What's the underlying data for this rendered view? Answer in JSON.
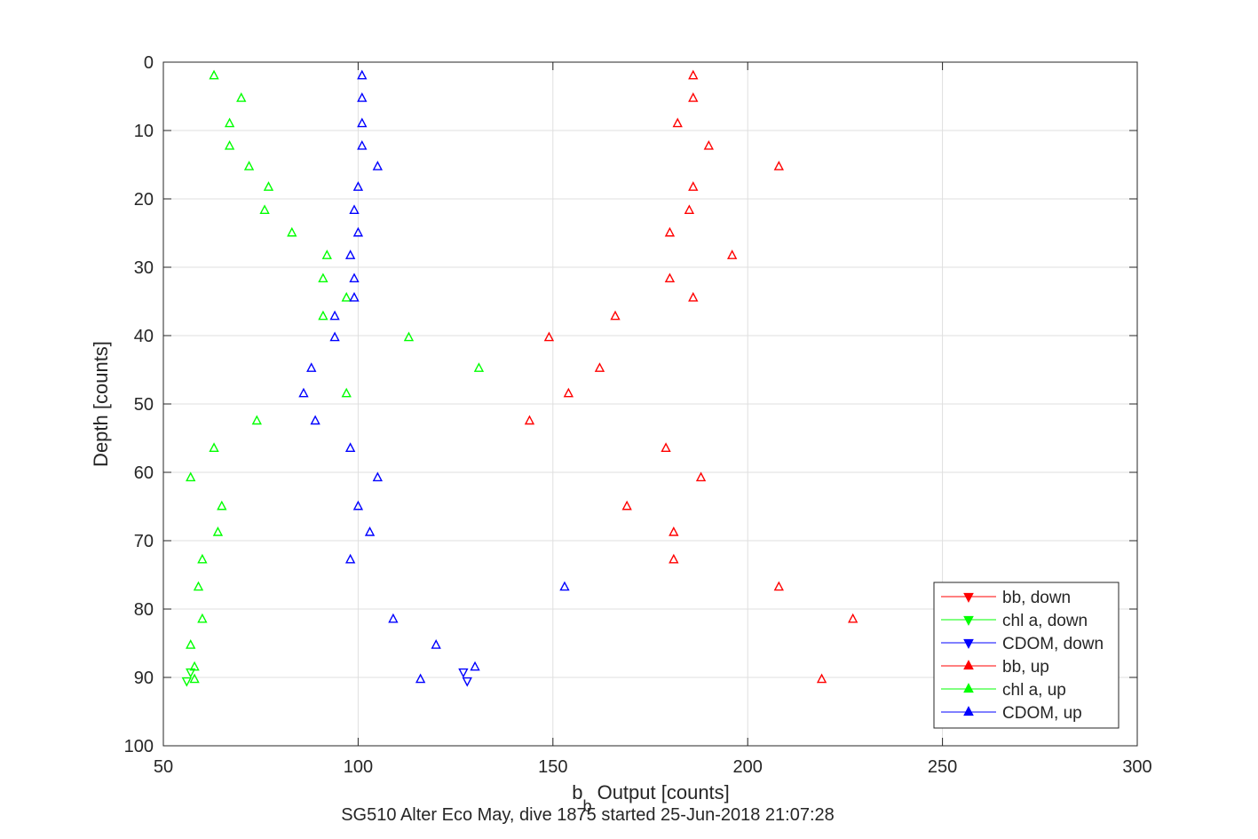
{
  "chart_data": {
    "type": "scatter",
    "xlabel_main": "b",
    "xlabel_sub": "b",
    "xlabel_rest": " Output [counts]",
    "ylabel": "Depth [counts]",
    "caption": "SG510 Alter Eco May, dive 1875 started 25-Jun-2018 21:07:28",
    "xlim": [
      50,
      300
    ],
    "ylim": [
      0,
      100
    ],
    "y_reversed": true,
    "grid": true,
    "legend_position": "bottom-right",
    "x_ticks": [
      50,
      100,
      150,
      200,
      250,
      300
    ],
    "y_ticks": [
      0,
      10,
      20,
      30,
      40,
      50,
      60,
      70,
      80,
      90,
      100
    ],
    "x_tick_labels": [
      "50",
      "100",
      "150",
      "200",
      "250",
      "300"
    ],
    "y_tick_labels": [
      "0",
      "10",
      "20",
      "30",
      "40",
      "50",
      "60",
      "70",
      "80",
      "90",
      "100"
    ],
    "series": [
      {
        "name": "bb, down",
        "color": "#ff0000",
        "marker": "triangle-down",
        "points": []
      },
      {
        "name": "chl a, down",
        "color": "#00ff00",
        "marker": "triangle-down",
        "points": [
          [
            57,
            89.2
          ],
          [
            56,
            90.5
          ]
        ]
      },
      {
        "name": "CDOM, down",
        "color": "#0000ff",
        "marker": "triangle-down",
        "points": [
          [
            127,
            89.2
          ],
          [
            128,
            90.5
          ]
        ]
      },
      {
        "name": "bb, up",
        "color": "#ff0000",
        "marker": "triangle-up",
        "points": [
          [
            186,
            2
          ],
          [
            186,
            5.3
          ],
          [
            182,
            9
          ],
          [
            190,
            12.3
          ],
          [
            208,
            15.3
          ],
          [
            186,
            18.3
          ],
          [
            185,
            21.7
          ],
          [
            180,
            25
          ],
          [
            196,
            28.3
          ],
          [
            180,
            31.7
          ],
          [
            186,
            34.5
          ],
          [
            166,
            37.2
          ],
          [
            149,
            40.3
          ],
          [
            162,
            44.8
          ],
          [
            154,
            48.5
          ],
          [
            144,
            52.5
          ],
          [
            179,
            56.5
          ],
          [
            188,
            60.8
          ],
          [
            169,
            65
          ],
          [
            181,
            68.8
          ],
          [
            181,
            72.8
          ],
          [
            208,
            76.8
          ],
          [
            227,
            81.5
          ],
          [
            219,
            90.3
          ]
        ]
      },
      {
        "name": "chl a, up",
        "color": "#00ff00",
        "marker": "triangle-up",
        "points": [
          [
            63,
            2
          ],
          [
            70,
            5.3
          ],
          [
            67,
            9
          ],
          [
            67,
            12.3
          ],
          [
            72,
            15.3
          ],
          [
            77,
            18.3
          ],
          [
            76,
            21.7
          ],
          [
            83,
            25
          ],
          [
            92,
            28.3
          ],
          [
            91,
            31.7
          ],
          [
            97,
            34.5
          ],
          [
            91,
            37.2
          ],
          [
            113,
            40.3
          ],
          [
            131,
            44.8
          ],
          [
            97,
            48.5
          ],
          [
            74,
            52.5
          ],
          [
            63,
            56.5
          ],
          [
            57,
            60.8
          ],
          [
            65,
            65
          ],
          [
            64,
            68.8
          ],
          [
            60,
            72.8
          ],
          [
            59,
            76.8
          ],
          [
            60,
            81.5
          ],
          [
            57,
            85.3
          ],
          [
            58,
            88.5
          ],
          [
            58,
            90.3
          ]
        ]
      },
      {
        "name": "CDOM, up",
        "color": "#0000ff",
        "marker": "triangle-up",
        "points": [
          [
            101,
            2
          ],
          [
            101,
            5.3
          ],
          [
            101,
            9
          ],
          [
            101,
            12.3
          ],
          [
            105,
            15.3
          ],
          [
            100,
            18.3
          ],
          [
            99,
            21.7
          ],
          [
            100,
            25
          ],
          [
            98,
            28.3
          ],
          [
            99,
            31.7
          ],
          [
            99,
            34.5
          ],
          [
            94,
            37.2
          ],
          [
            94,
            40.3
          ],
          [
            88,
            44.8
          ],
          [
            86,
            48.5
          ],
          [
            89,
            52.5
          ],
          [
            98,
            56.5
          ],
          [
            105,
            60.8
          ],
          [
            100,
            65
          ],
          [
            103,
            68.8
          ],
          [
            98,
            72.8
          ],
          [
            153,
            76.8
          ],
          [
            109,
            81.5
          ],
          [
            120,
            85.3
          ],
          [
            130,
            88.5
          ],
          [
            116,
            90.3
          ]
        ]
      }
    ]
  }
}
